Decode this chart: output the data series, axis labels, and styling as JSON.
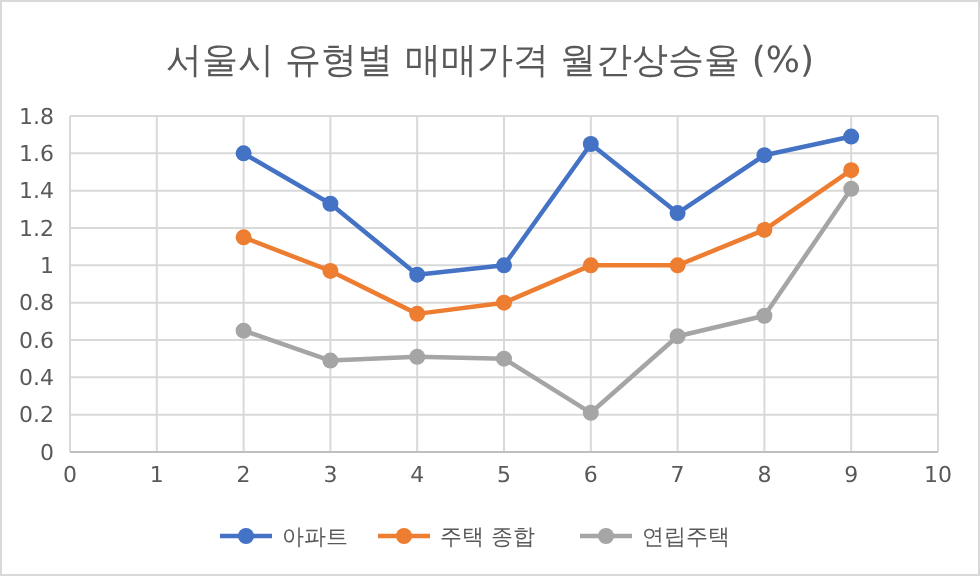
{
  "chart_data": {
    "type": "line",
    "title": "서울시 유형별 매매가격 월간상승율 (%)",
    "x": [
      2,
      3,
      4,
      5,
      6,
      7,
      8,
      9
    ],
    "xlim": [
      0,
      10
    ],
    "xticks": [
      0,
      1,
      2,
      3,
      4,
      5,
      6,
      7,
      8,
      9,
      10
    ],
    "ylim": [
      0,
      1.8
    ],
    "yticks": [
      0,
      0.2,
      0.4,
      0.6,
      0.8,
      1,
      1.2,
      1.4,
      1.6,
      1.8
    ],
    "grid": true,
    "legend": "bottom",
    "marker": "circle",
    "line_style": "solid",
    "series": [
      {
        "name": "아파트",
        "color": "#4472c4",
        "values": [
          1.6,
          1.33,
          0.95,
          1.0,
          1.65,
          1.28,
          1.59,
          1.69
        ]
      },
      {
        "name": "주택 종합",
        "color": "#ed7d31",
        "values": [
          1.15,
          0.97,
          0.74,
          0.8,
          1.0,
          1.0,
          1.19,
          1.51
        ]
      },
      {
        "name": "연립주택",
        "color": "#a5a5a5",
        "values": [
          0.65,
          0.49,
          0.51,
          0.5,
          0.21,
          0.62,
          0.73,
          1.41
        ]
      }
    ]
  }
}
